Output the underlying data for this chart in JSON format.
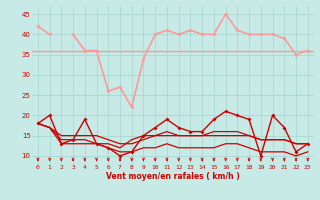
{
  "bg_color": "#c8eae6",
  "grid_color": "#a8d8d0",
  "xlabel": "Vent moyen/en rafales ( km/h )",
  "x": [
    0,
    1,
    2,
    3,
    4,
    5,
    6,
    7,
    8,
    9,
    10,
    11,
    12,
    13,
    14,
    15,
    16,
    17,
    18,
    19,
    20,
    21,
    22,
    23
  ],
  "ylim": [
    8,
    47
  ],
  "yticks": [
    10,
    15,
    20,
    25,
    30,
    35,
    40,
    45
  ],
  "gust_vals": [
    42,
    40,
    null,
    40,
    36,
    36,
    26,
    27,
    22,
    34,
    40,
    41,
    40,
    41,
    40,
    40,
    45,
    41,
    40,
    40,
    40,
    39,
    35,
    36
  ],
  "flat_line_val": 36,
  "main1": [
    18,
    20,
    13,
    14,
    19,
    13,
    12,
    10,
    11,
    15,
    17,
    19,
    17,
    16,
    16,
    19,
    21,
    20,
    19,
    10,
    20,
    17,
    11,
    13
  ],
  "main2": [
    18,
    17,
    14,
    14,
    14,
    13,
    13,
    12,
    14,
    15,
    15,
    16,
    15,
    15,
    15,
    16,
    16,
    16,
    15,
    14,
    14,
    14,
    13,
    13
  ],
  "main3": [
    18,
    17,
    13,
    13,
    13,
    13,
    12,
    11,
    11,
    12,
    12,
    13,
    12,
    12,
    12,
    12,
    13,
    13,
    12,
    11,
    11,
    11,
    10,
    11
  ],
  "main4": [
    18,
    17,
    15,
    15,
    15,
    15,
    14,
    13,
    13,
    14,
    15,
    15,
    15,
    15,
    15,
    15,
    15,
    15,
    15,
    14,
    14,
    14,
    13,
    13
  ],
  "light_color": "#ff9999",
  "dark_color": "#cc0000",
  "arrow_angles": [
    225,
    225,
    225,
    225,
    270,
    270,
    315,
    270,
    270,
    270,
    270,
    270,
    270,
    270,
    270,
    270,
    270,
    270,
    270,
    270,
    270,
    270,
    270,
    270
  ]
}
